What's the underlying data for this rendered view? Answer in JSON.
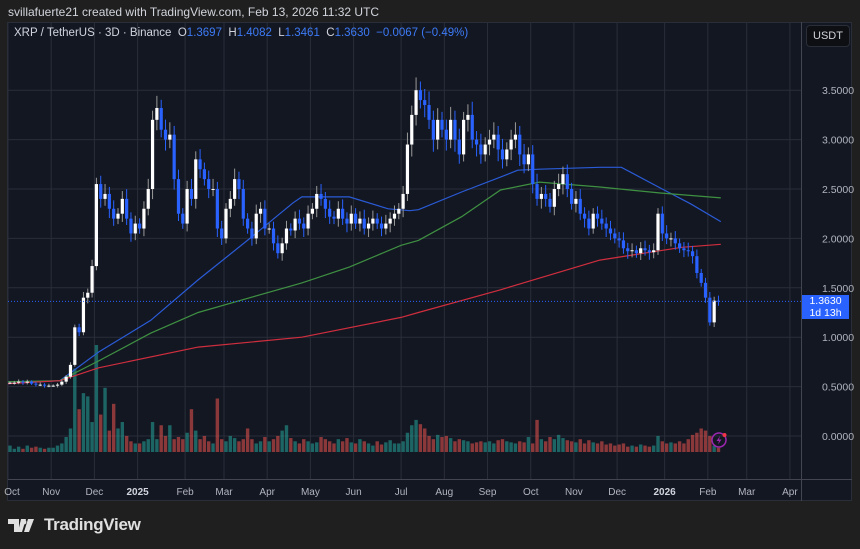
{
  "attribution": "svillafuerte21 created with TradingView.com, Feb 13, 2026 11:32 UTC",
  "legend": {
    "symbol": "XRP / TetherUS · 3D · Binance",
    "o_label": "O",
    "o": "1.3697",
    "h_label": "H",
    "h": "1.4082",
    "l_label": "L",
    "l": "1.3461",
    "c_label": "C",
    "c": "1.3630",
    "change": "−0.0067 (−0.49%)"
  },
  "currency_button": "USDT",
  "last_price": {
    "value": "1.3630",
    "countdown": "1d 13h"
  },
  "brand": "TradingView",
  "colors": {
    "background": "#131722",
    "up_candle": "#ffffff",
    "down_candle": "#2962ff",
    "volume_up": "#26a69a",
    "volume_down": "#ef5350",
    "ma_fast": "#2a5bd7",
    "ma_mid": "#3f9142",
    "ma_slow": "#d02e3e",
    "grid": "#2a2e39"
  },
  "chart_data": {
    "type": "candlestick",
    "interval": "3D",
    "ylim": [
      -0.1,
      3.9
    ],
    "y_ticks": [
      "0.0000",
      "0.5000",
      "1.0000",
      "1.5000",
      "2.0000",
      "2.5000",
      "3.0000",
      "3.5000"
    ],
    "y_tick_values": [
      0,
      0.5,
      1,
      1.5,
      2,
      2.5,
      3,
      3.5
    ],
    "x_ticks": [
      "Oct",
      "Nov",
      "Dec",
      "2025",
      "Feb",
      "Mar",
      "Apr",
      "May",
      "Jun",
      "Jul",
      "Aug",
      "Sep",
      "Oct",
      "Nov",
      "Dec",
      "2026",
      "Feb",
      "Mar",
      "Apr"
    ],
    "x_tick_candle_index": [
      0,
      10,
      20,
      30,
      41,
      50,
      60,
      70,
      80,
      91,
      101,
      111,
      121,
      131,
      141,
      152,
      162,
      171,
      181
    ],
    "grid": true,
    "first_open": 0.54,
    "closes": [
      0.54,
      0.54,
      0.55,
      0.54,
      0.55,
      0.53,
      0.52,
      0.52,
      0.51,
      0.51,
      0.51,
      0.52,
      0.55,
      0.6,
      0.72,
      1.1,
      1.05,
      1.4,
      1.45,
      1.72,
      2.55,
      2.4,
      2.45,
      2.3,
      2.2,
      2.25,
      2.4,
      2.2,
      2.05,
      2.15,
      2.1,
      2.3,
      2.5,
      3.2,
      3.32,
      3.1,
      3.0,
      3.05,
      2.6,
      2.25,
      2.15,
      2.5,
      2.4,
      2.8,
      2.7,
      2.6,
      2.5,
      2.5,
      2.1,
      2.0,
      2.3,
      2.4,
      2.6,
      2.5,
      2.2,
      2.1,
      2.0,
      2.25,
      2.3,
      2.1,
      2.1,
      1.95,
      1.85,
      1.95,
      2.1,
      2.08,
      2.2,
      2.15,
      2.1,
      2.25,
      2.3,
      2.45,
      2.4,
      2.3,
      2.22,
      2.2,
      2.3,
      2.2,
      2.15,
      2.25,
      2.15,
      2.2,
      2.1,
      2.15,
      2.2,
      2.15,
      2.1,
      2.15,
      2.2,
      2.25,
      2.3,
      2.45,
      2.95,
      3.25,
      3.5,
      3.4,
      3.35,
      3.2,
      3.0,
      3.2,
      3.1,
      3.0,
      3.2,
      3.0,
      2.85,
      3.2,
      3.25,
      3.0,
      2.95,
      2.85,
      2.95,
      3.0,
      3.05,
      2.9,
      2.8,
      2.9,
      3.0,
      3.05,
      2.85,
      2.75,
      2.85,
      2.55,
      2.4,
      2.45,
      2.4,
      2.32,
      2.5,
      2.55,
      2.65,
      2.5,
      2.35,
      2.4,
      2.25,
      2.2,
      2.1,
      2.25,
      2.2,
      2.15,
      2.1,
      2.05,
      2.0,
      1.98,
      1.9,
      1.87,
      1.88,
      1.85,
      1.9,
      1.88,
      1.86,
      1.88,
      2.25,
      2.05,
      2.0,
      2.0,
      1.95,
      1.9,
      1.88,
      1.87,
      1.82,
      1.65,
      1.55,
      1.4,
      1.15,
      1.37,
      1.363
    ],
    "volume_relative": [
      6,
      3,
      5,
      3,
      6,
      4,
      5,
      4,
      3,
      4,
      4,
      6,
      8,
      14,
      22,
      78,
      40,
      55,
      52,
      28,
      100,
      35,
      60,
      20,
      45,
      22,
      28,
      15,
      10,
      8,
      8,
      10,
      12,
      28,
      12,
      25,
      15,
      25,
      12,
      14,
      12,
      18,
      40,
      20,
      12,
      15,
      10,
      8,
      50,
      12,
      10,
      15,
      13,
      10,
      12,
      22,
      12,
      8,
      10,
      14,
      10,
      12,
      15,
      20,
      25,
      13,
      10,
      8,
      12,
      10,
      8,
      9,
      14,
      12,
      10,
      8,
      12,
      10,
      13,
      9,
      8,
      12,
      10,
      8,
      6,
      10,
      7,
      9,
      11,
      8,
      8,
      10,
      18,
      25,
      30,
      26,
      22,
      15,
      12,
      16,
      14,
      15,
      13,
      10,
      12,
      11,
      10,
      8,
      9,
      10,
      9,
      10,
      8,
      11,
      12,
      10,
      9,
      8,
      10,
      9,
      14,
      8,
      30,
      12,
      10,
      14,
      12,
      16,
      13,
      11,
      10,
      9,
      12,
      8,
      11,
      9,
      8,
      10,
      7,
      8,
      6,
      7,
      8,
      5,
      6,
      5,
      7,
      6,
      5,
      6,
      15,
      10,
      8,
      9,
      8,
      10,
      8,
      12,
      16,
      18,
      22,
      20,
      15,
      6,
      4
    ],
    "moving_averages": [
      {
        "color_key": "ma_fast",
        "points": [
          [
            0,
            0.53
          ],
          [
            12,
            0.56
          ],
          [
            21,
            0.85
          ],
          [
            33,
            1.17
          ],
          [
            44,
            1.58
          ],
          [
            56,
            2.0
          ],
          [
            66,
            2.36
          ],
          [
            68,
            2.42
          ],
          [
            79,
            2.42
          ],
          [
            88,
            2.3
          ],
          [
            93,
            2.28
          ],
          [
            95,
            2.29
          ],
          [
            105,
            2.47
          ],
          [
            114,
            2.62
          ],
          [
            118,
            2.69
          ],
          [
            123,
            2.7
          ],
          [
            137,
            2.72
          ],
          [
            142,
            2.72
          ],
          [
            151,
            2.51
          ],
          [
            158,
            2.35
          ],
          [
            165,
            2.17
          ]
        ]
      },
      {
        "color_key": "ma_mid",
        "points": [
          [
            0,
            0.55
          ],
          [
            12,
            0.56
          ],
          [
            21,
            0.76
          ],
          [
            33,
            1.04
          ],
          [
            44,
            1.25
          ],
          [
            56,
            1.4
          ],
          [
            68,
            1.55
          ],
          [
            79,
            1.71
          ],
          [
            91,
            1.93
          ],
          [
            95,
            1.98
          ],
          [
            105,
            2.22
          ],
          [
            114,
            2.49
          ],
          [
            123,
            2.57
          ],
          [
            137,
            2.52
          ],
          [
            151,
            2.46
          ],
          [
            165,
            2.41
          ]
        ]
      },
      {
        "color_key": "ma_slow",
        "points": [
          [
            0,
            0.53
          ],
          [
            12,
            0.56
          ],
          [
            21,
            0.69
          ],
          [
            44,
            0.9
          ],
          [
            68,
            1.0
          ],
          [
            91,
            1.2
          ],
          [
            95,
            1.25
          ],
          [
            114,
            1.48
          ],
          [
            137,
            1.78
          ],
          [
            156,
            1.91
          ],
          [
            165,
            1.94
          ]
        ]
      }
    ]
  }
}
